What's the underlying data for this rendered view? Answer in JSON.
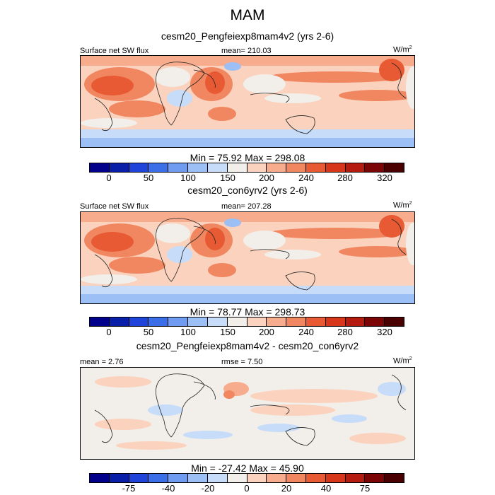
{
  "title": "MAM",
  "panels": [
    {
      "subtitle": "cesm20_Pengfeiexp8mam4v2 (yrs 2-6)",
      "left_label": "Surface net SW flux",
      "center_label": "mean= 210.03",
      "units": "W/m",
      "units_sup": "2",
      "minmax": "Min =  75.92 Max = 298.08",
      "ticks": [
        "0",
        "50",
        "100",
        "150",
        "200",
        "240",
        "280",
        "320"
      ]
    },
    {
      "subtitle": "cesm20_con6yrv2 (yrs 2-6)",
      "left_label": "Surface net SW flux",
      "center_label": "mean= 207.28",
      "units": "W/m",
      "units_sup": "2",
      "minmax": "Min =  78.77 Max = 298.73",
      "ticks": [
        "0",
        "50",
        "100",
        "150",
        "200",
        "240",
        "280",
        "320"
      ]
    },
    {
      "subtitle": "cesm20_Pengfeiexp8mam4v2 - cesm20_con6yrv2",
      "left_label": "mean =   2.76",
      "center_label": "rmse =   7.50",
      "units": "W/m",
      "units_sup": "2",
      "minmax": "Min = -27.42 Max =  45.90",
      "ticks": [
        "-75",
        "-40",
        "-20",
        "0",
        "20",
        "40",
        "75"
      ]
    }
  ],
  "colors": {
    "scale": [
      "#00008b",
      "#0a1fa8",
      "#1f44d9",
      "#3a6fe8",
      "#6f9bf0",
      "#9cbff5",
      "#c7dcf8",
      "#f2eeea",
      "#fbd2bd",
      "#f7ad8d",
      "#f18760",
      "#e85a33",
      "#d8361a",
      "#b61b0f",
      "#7a0504"
    ]
  }
}
